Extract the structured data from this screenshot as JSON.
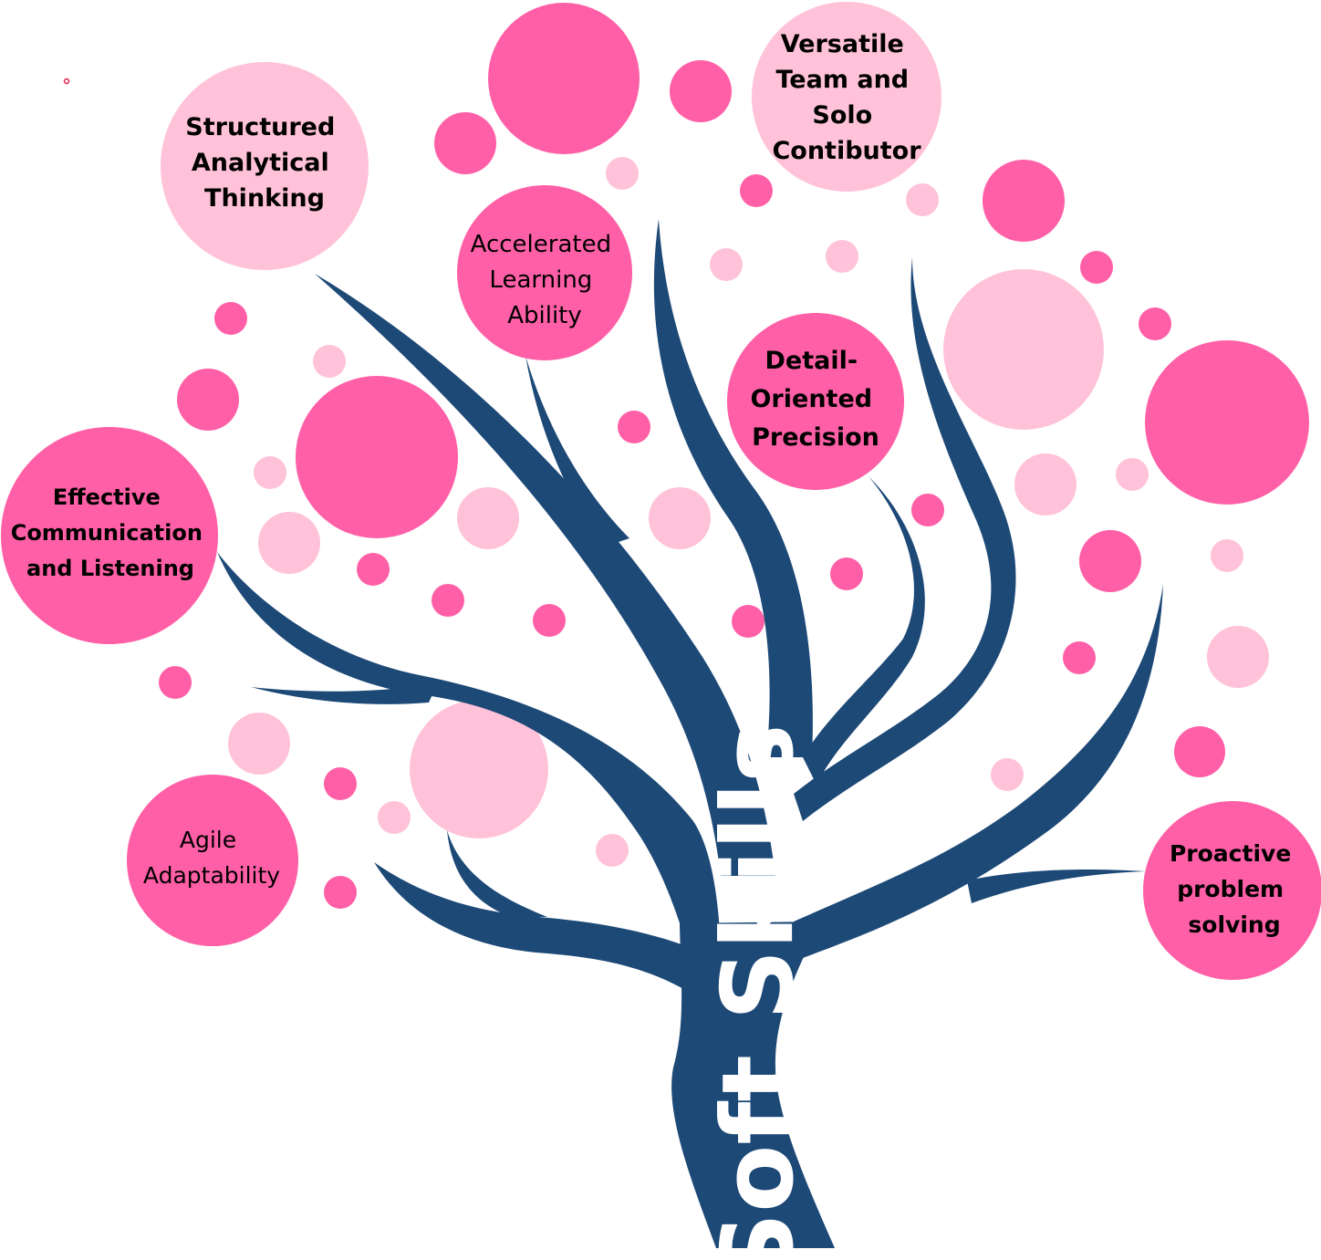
{
  "trunk_label": "Soft Skills",
  "colors": {
    "trunk": "#1d4977",
    "dark_pink": "#ff5fa6",
    "light_pink": "#ffc2d9",
    "trunk_text": "#ffffff",
    "skill_text": "#000000"
  },
  "skills": [
    {
      "id": "structured-analytical-thinking",
      "lines": [
        "Structured",
        "Analytical",
        "Thinking"
      ],
      "tone": "light",
      "bold": true
    },
    {
      "id": "accelerated-learning-ability",
      "lines": [
        "Accelerated",
        "Learning",
        "Ability"
      ],
      "tone": "dark",
      "bold": false
    },
    {
      "id": "versatile-team-and-solo-contributor",
      "lines": [
        "Versatile",
        "Team and",
        "Solo",
        "Contibutor"
      ],
      "tone": "light",
      "bold": true
    },
    {
      "id": "detail-oriented-precision",
      "lines": [
        "Detail-",
        "Oriented",
        "Precision"
      ],
      "tone": "dark",
      "bold": true
    },
    {
      "id": "effective-communication-and-listening",
      "lines": [
        "Effective",
        "Communication",
        "and Listening"
      ],
      "tone": "dark",
      "bold": true
    },
    {
      "id": "agile-adaptability",
      "lines": [
        "Agile",
        "Adaptability"
      ],
      "tone": "dark",
      "bold": false
    },
    {
      "id": "proactive-problem-solving",
      "lines": [
        "Proactive",
        "problem",
        "solving"
      ],
      "tone": "dark",
      "bold": true
    }
  ]
}
